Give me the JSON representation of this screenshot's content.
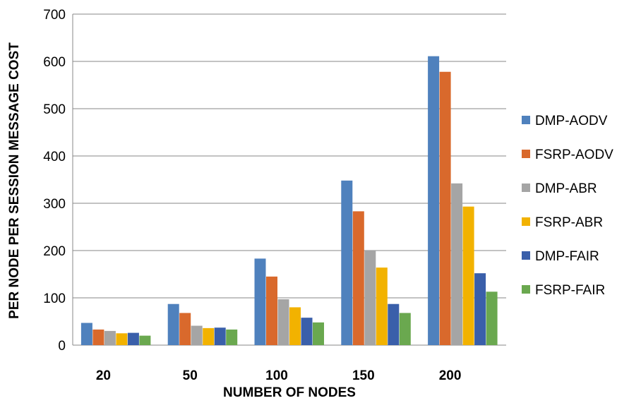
{
  "chart_data": {
    "type": "bar",
    "categories": [
      "20",
      "50",
      "100",
      "150",
      "200"
    ],
    "series": [
      {
        "name": "DMP-AODV",
        "color": "#4f81bd",
        "values": [
          47,
          87,
          183,
          348,
          611
        ]
      },
      {
        "name": "FSRP-AODV",
        "color": "#d9692c",
        "values": [
          33,
          68,
          145,
          283,
          578
        ]
      },
      {
        "name": "DMP-ABR",
        "color": "#a5a5a5",
        "values": [
          30,
          41,
          97,
          200,
          342
        ]
      },
      {
        "name": "FSRP-ABR",
        "color": "#f2b200",
        "values": [
          25,
          36,
          80,
          164,
          293
        ]
      },
      {
        "name": "DMP-FAIR",
        "color": "#3a5faa",
        "values": [
          26,
          37,
          58,
          87,
          152
        ]
      },
      {
        "name": "FSRP-FAIR",
        "color": "#6aa84f",
        "values": [
          20,
          33,
          48,
          68,
          113
        ]
      }
    ],
    "yticks": [
      "0",
      "100",
      "200",
      "300",
      "400",
      "500",
      "600",
      "700"
    ],
    "ylim": [
      0,
      700
    ],
    "xlabel": "NUMBER OF NODES",
    "ylabel": "PER NODE PER SESSION MESSAGE COST",
    "grid": true,
    "legend_position": "right"
  }
}
